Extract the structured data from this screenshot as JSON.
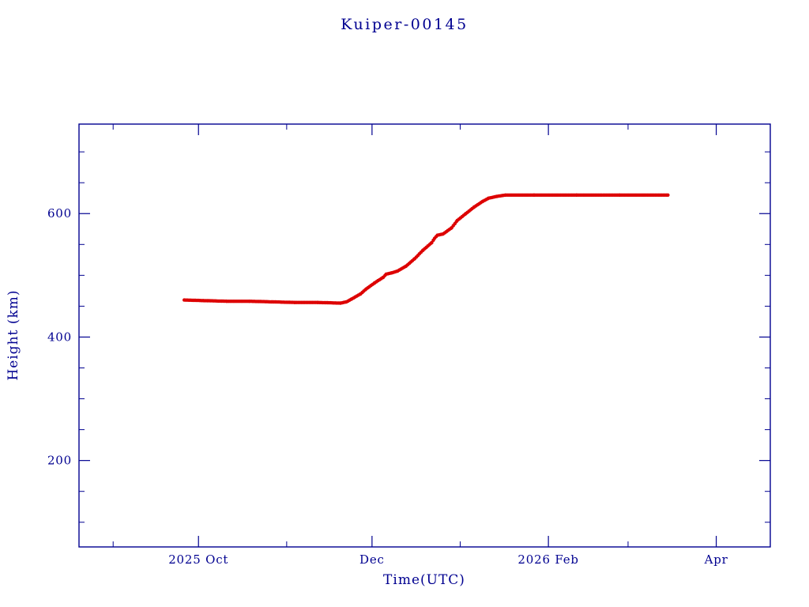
{
  "page": {
    "background": "#ffffff"
  },
  "colors": {
    "text": "#000090",
    "axis": "#000090",
    "series": "#dd0000",
    "series_underline": "#2f7f7f",
    "background": "#ffffff"
  },
  "chart_data": {
    "type": "line",
    "title": "Kuiper-00145",
    "xlabel": "Time(UTC)",
    "ylabel": "Height (km)",
    "xlim": [
      "2025-08-20",
      "2026-04-20"
    ],
    "ylim": [
      60,
      745
    ],
    "grid": false,
    "legend": "none",
    "yticks": [
      200,
      400,
      600
    ],
    "yminor": [
      100,
      150,
      250,
      300,
      350,
      450,
      500,
      550,
      650,
      700
    ],
    "xticks": [
      {
        "label": "2025 Oct",
        "date": "2025-10-01"
      },
      {
        "label": "Dec",
        "date": "2025-12-01"
      },
      {
        "label": "2026 Feb",
        "date": "2026-02-01"
      },
      {
        "label": "Apr",
        "date": "2026-04-01"
      }
    ],
    "xminor_dates": [
      "2025-09-01",
      "2025-11-01",
      "2026-01-01",
      "2026-03-01"
    ],
    "series": [
      {
        "name": "height",
        "color": "#dd0000",
        "style": "dense-dots",
        "points": [
          [
            "2025-09-26",
            460
          ],
          [
            "2025-10-03",
            459
          ],
          [
            "2025-10-11",
            458
          ],
          [
            "2025-10-19",
            458
          ],
          [
            "2025-10-27",
            457
          ],
          [
            "2025-11-04",
            456
          ],
          [
            "2025-11-12",
            456
          ],
          [
            "2025-11-20",
            455
          ],
          [
            "2025-11-22",
            457
          ],
          [
            "2025-11-24",
            462
          ],
          [
            "2025-11-27",
            470
          ],
          [
            "2025-11-29",
            478
          ],
          [
            "2025-12-02",
            488
          ],
          [
            "2025-12-05",
            497
          ],
          [
            "2025-12-06",
            502
          ],
          [
            "2025-12-08",
            504
          ],
          [
            "2025-12-10",
            507
          ],
          [
            "2025-12-13",
            515
          ],
          [
            "2025-12-16",
            527
          ],
          [
            "2025-12-19",
            541
          ],
          [
            "2025-12-22",
            553
          ],
          [
            "2025-12-23",
            560
          ],
          [
            "2025-12-24",
            565
          ],
          [
            "2025-12-26",
            567
          ],
          [
            "2025-12-29",
            577
          ],
          [
            "2025-12-31",
            589
          ],
          [
            "2026-01-03",
            600
          ],
          [
            "2026-01-06",
            611
          ],
          [
            "2026-01-09",
            620
          ],
          [
            "2026-01-11",
            625
          ],
          [
            "2026-01-14",
            628
          ],
          [
            "2026-01-17",
            630
          ],
          [
            "2026-01-27",
            630
          ],
          [
            "2026-02-11",
            630
          ],
          [
            "2026-02-26",
            630
          ],
          [
            "2026-03-15",
            630
          ]
        ]
      }
    ]
  }
}
